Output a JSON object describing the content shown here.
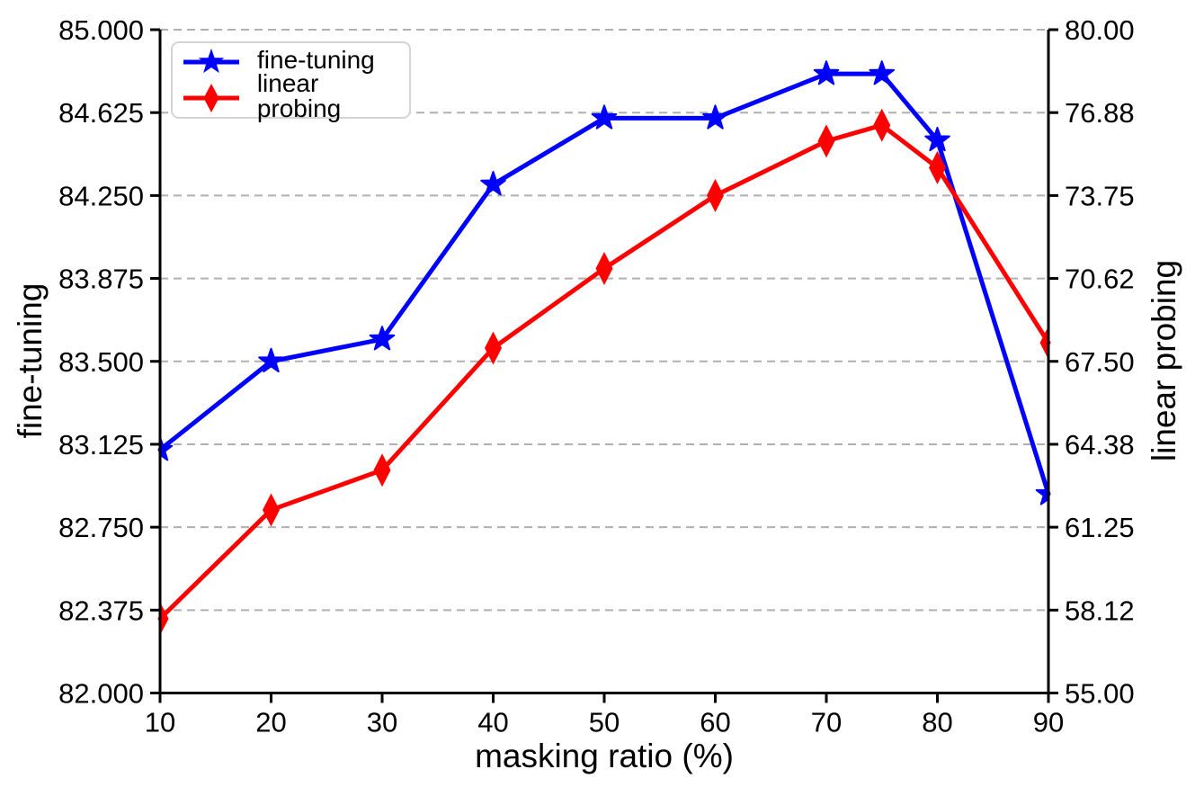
{
  "chart_data": {
    "type": "line",
    "title": "",
    "xlabel": "masking ratio (%)",
    "xlim": [
      10,
      90
    ],
    "x_ticks": [
      10,
      20,
      30,
      40,
      50,
      60,
      70,
      80,
      90
    ],
    "left_axis": {
      "label": "fine-tuning",
      "lim": [
        82.0,
        85.0
      ],
      "tick_labels": [
        "82.000",
        "82.375",
        "82.750",
        "83.125",
        "83.500",
        "83.875",
        "84.250",
        "84.625",
        "85.000"
      ]
    },
    "right_axis": {
      "label": "linear probing",
      "lim": [
        55.0,
        80.0
      ],
      "tick_labels": [
        "55.00",
        "58.12",
        "61.25",
        "64.38",
        "67.50",
        "70.62",
        "73.75",
        "76.88",
        "80.00"
      ]
    },
    "grid": {
      "axis": "y",
      "style": "dashed",
      "color": "#b0b0b0"
    },
    "x": [
      10,
      20,
      30,
      40,
      50,
      60,
      70,
      75,
      80,
      90
    ],
    "series": [
      {
        "name": "fine-tuning",
        "axis": "left",
        "color": "#0000ff",
        "marker": "star",
        "values": [
          83.1,
          83.5,
          83.6,
          84.3,
          84.6,
          84.6,
          84.8,
          84.8,
          84.5,
          82.9
        ]
      },
      {
        "name": "linear probing",
        "axis": "right",
        "color": "#ff0000",
        "marker": "thin-diamond",
        "values": [
          57.8,
          61.9,
          63.4,
          68.0,
          71.0,
          73.75,
          75.8,
          76.4,
          74.8,
          68.2
        ]
      }
    ],
    "legend": {
      "position": "upper-left",
      "entries": [
        {
          "label": "fine-tuning",
          "color": "#0000ff",
          "marker": "star"
        },
        {
          "label": "linear probing",
          "color": "#ff0000",
          "marker": "thin-diamond"
        }
      ]
    }
  }
}
